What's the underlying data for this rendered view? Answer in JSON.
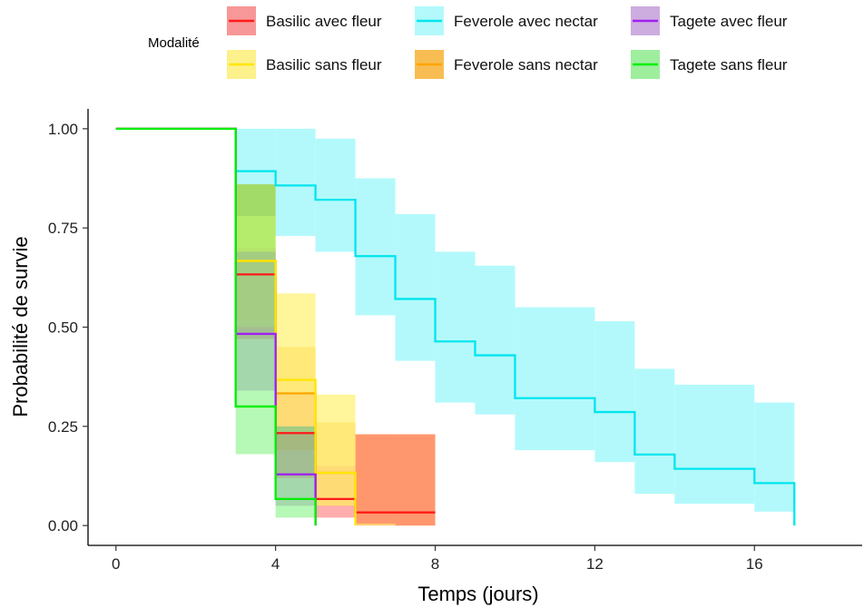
{
  "chart_data": {
    "type": "step",
    "xlabel": "Temps (jours)",
    "ylabel": "Probabilité de survie",
    "xlim": [
      -0.7,
      18.7
    ],
    "ylim": [
      -0.05,
      1.05
    ],
    "xticks": [
      0,
      4,
      8,
      12,
      16
    ],
    "yticks": [
      0,
      0.25,
      0.5,
      0.75,
      1.0
    ],
    "ytick_labels": [
      "0.00",
      "0.25",
      "0.50",
      "0.75",
      "1.00"
    ],
    "grid": false,
    "legend": {
      "title": "Modalité",
      "placement": "top",
      "columns": [
        [
          "Basilic avec fleur",
          "Basilic sans fleur"
        ],
        [
          "Feverole avec nectar",
          "Feverole sans nectar"
        ],
        [
          "Tagete avec fleur",
          "Tagete sans fleur"
        ]
      ]
    },
    "series": [
      {
        "name": "Feverole avec nectar",
        "color": "#00e5ee",
        "fill": "#b3f9fb",
        "fill_opacity": 1,
        "x": [
          0,
          3,
          4,
          5,
          6,
          7,
          8,
          9,
          10,
          12,
          13,
          14,
          16,
          17
        ],
        "y": [
          1.0,
          0.893,
          0.857,
          0.821,
          0.679,
          0.571,
          0.464,
          0.429,
          0.321,
          0.286,
          0.179,
          0.143,
          0.107,
          0.0
        ],
        "lower": [
          1.0,
          0.78,
          0.73,
          0.69,
          0.53,
          0.415,
          0.31,
          0.28,
          0.19,
          0.16,
          0.08,
          0.055,
          0.035,
          0.0
        ],
        "upper": [
          1.0,
          1.0,
          1.0,
          0.975,
          0.875,
          0.785,
          0.69,
          0.655,
          0.55,
          0.515,
          0.395,
          0.355,
          0.31,
          0.31
        ],
        "end": 17
      },
      {
        "name": "Feverole sans nectar",
        "color": "#ffa500",
        "fill": "#ffa500",
        "fill_opacity": 0.55,
        "x": [
          0,
          3,
          4,
          5,
          6,
          7
        ],
        "y": [
          1.0,
          0.667,
          0.333,
          0.133,
          0.033,
          0.033
        ],
        "lower": [
          1.0,
          0.52,
          0.19,
          0.05,
          0.0,
          0.0
        ],
        "upper": [
          1.0,
          0.86,
          0.45,
          0.26,
          0.23,
          0.23
        ],
        "end": 8
      },
      {
        "name": "Basilic avec fleur",
        "color": "#ff1a1a",
        "fill": "#ff6a6a",
        "fill_opacity": 0.55,
        "x": [
          0,
          3,
          4,
          5,
          6,
          7
        ],
        "y": [
          1.0,
          0.633,
          0.233,
          0.067,
          0.033,
          0.033
        ],
        "lower": [
          1.0,
          0.47,
          0.12,
          0.02,
          0.005,
          0.0
        ],
        "upper": [
          1.0,
          0.7,
          0.33,
          0.15,
          0.23,
          0.23
        ],
        "end": 8
      },
      {
        "name": "Basilic sans fleur",
        "color": "#ffe600",
        "fill": "#fff27a",
        "fill_opacity": 0.75,
        "x": [
          0,
          3,
          4,
          5,
          6
        ],
        "y": [
          1.0,
          0.667,
          0.367,
          0.133,
          0.0
        ],
        "lower": [
          1.0,
          0.5,
          0.23,
          0.05,
          0.0
        ],
        "upper": [
          1.0,
          0.78,
          0.585,
          0.33,
          0.0
        ],
        "end": 6
      },
      {
        "name": "Tagete avec fleur",
        "color": "#a020f0",
        "fill": "#b57ad6",
        "fill_opacity": 0.45,
        "x": [
          0,
          3,
          4,
          5
        ],
        "y": [
          1.0,
          0.483,
          0.129,
          0.0
        ],
        "lower": [
          1.0,
          0.34,
          0.05,
          0.0
        ],
        "upper": [
          1.0,
          0.69,
          0.25,
          0.0
        ],
        "end": 5
      },
      {
        "name": "Tagete sans fleur",
        "color": "#00ee00",
        "fill": "#5ef05e",
        "fill_opacity": 0.45,
        "x": [
          0,
          3,
          4,
          5
        ],
        "y": [
          1.0,
          0.3,
          0.067,
          0.0
        ],
        "lower": [
          1.0,
          0.18,
          0.02,
          0.0
        ],
        "upper": [
          1.0,
          0.86,
          0.25,
          0.0
        ],
        "end": 5
      }
    ]
  }
}
